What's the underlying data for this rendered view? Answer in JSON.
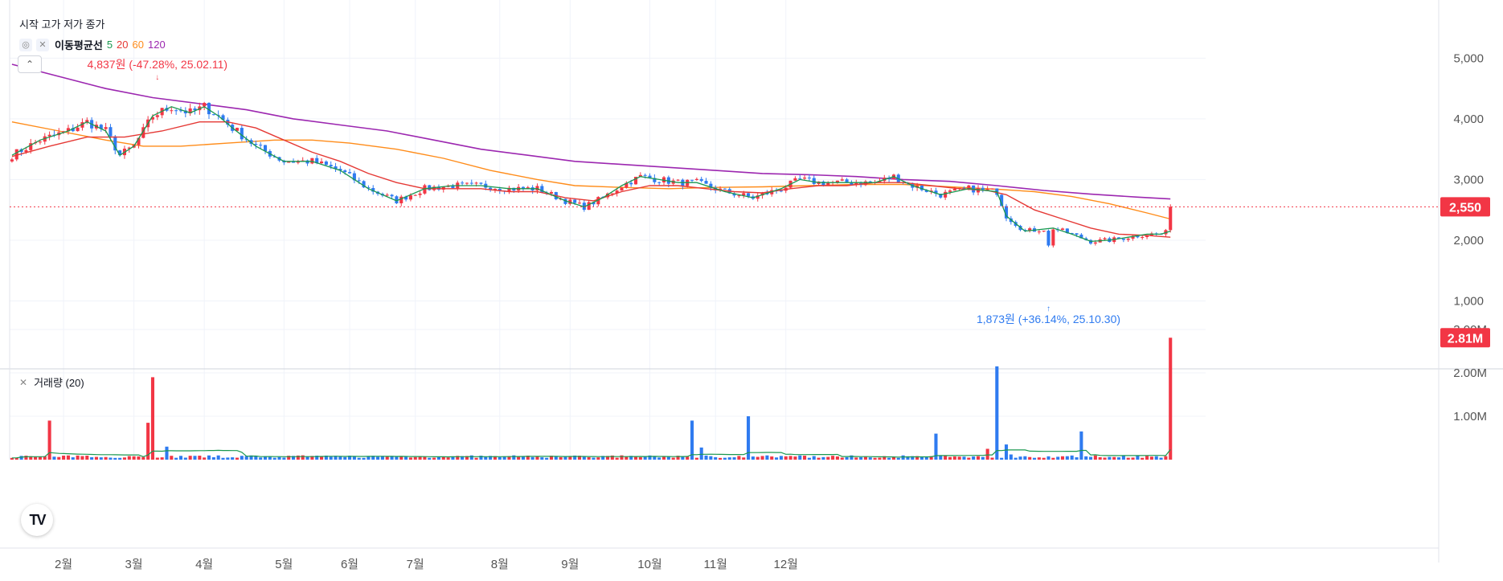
{
  "legend": {
    "ohlc_label": "시작 고가 저가 종가",
    "ma_title": "이동평균선",
    "ma_periods": [
      "5",
      "20",
      "60",
      "120"
    ],
    "collapse_icon": "chevron-up",
    "volume_title": "거래량 (20)"
  },
  "colors": {
    "up": "#f23645",
    "down": "#2f7bf0",
    "ma5": "#1a9850",
    "ma20": "#e53935",
    "ma60": "#ff8c1a",
    "ma120": "#9c27b0",
    "vol_ma": "#1a9850",
    "grid": "#f0f3fa"
  },
  "chart_data": {
    "type": "candlestick",
    "x_ticks": [
      "2월",
      "3월",
      "4월",
      "5월",
      "6월",
      "7월",
      "8월",
      "9월",
      "10월",
      "11월",
      "12월"
    ],
    "price_axis": {
      "ticks": [
        "1,000",
        "2,000",
        "3,000",
        "4,000",
        "5,000"
      ],
      "range": [
        900,
        5800
      ]
    },
    "volume_axis": {
      "ticks": [
        "1.00M",
        "2.00M",
        "3.00M"
      ],
      "range": [
        0,
        3000000
      ]
    },
    "current_price": "2,550",
    "current_price_value": 2550,
    "current_volume": "2.81M",
    "annotations": {
      "high": {
        "text": "4,837원 (-47.28%, 25.02.11)",
        "value": 4837,
        "date_index": 31
      },
      "low": {
        "text": "1,873원 (+36.14%, 25.10.30)",
        "value": 1873,
        "date_index": 221
      }
    },
    "ma_lines": {
      "ma5": [
        [
          0,
          3400
        ],
        [
          6,
          3650
        ],
        [
          12,
          3800
        ],
        [
          16,
          3950
        ],
        [
          20,
          3800
        ],
        [
          23,
          3400
        ],
        [
          26,
          3550
        ],
        [
          30,
          4050
        ],
        [
          34,
          4200
        ],
        [
          38,
          4100
        ],
        [
          41,
          4200
        ],
        [
          44,
          4050
        ],
        [
          47,
          3850
        ],
        [
          52,
          3550
        ],
        [
          58,
          3300
        ],
        [
          64,
          3300
        ],
        [
          70,
          3150
        ],
        [
          76,
          2850
        ],
        [
          82,
          2650
        ],
        [
          88,
          2850
        ],
        [
          94,
          2900
        ],
        [
          100,
          2900
        ],
        [
          106,
          2850
        ],
        [
          112,
          2850
        ],
        [
          118,
          2650
        ],
        [
          122,
          2550
        ],
        [
          126,
          2700
        ],
        [
          130,
          2900
        ],
        [
          134,
          3050
        ],
        [
          138,
          3000
        ],
        [
          142,
          2950
        ],
        [
          146,
          2950
        ],
        [
          152,
          2800
        ],
        [
          158,
          2700
        ],
        [
          164,
          2850
        ],
        [
          168,
          3000
        ],
        [
          172,
          2950
        ],
        [
          178,
          2950
        ],
        [
          184,
          2950
        ],
        [
          188,
          3050
        ],
        [
          192,
          2900
        ],
        [
          198,
          2750
        ],
        [
          204,
          2850
        ],
        [
          210,
          2800
        ],
        [
          212,
          2400
        ],
        [
          216,
          2150
        ],
        [
          222,
          2200
        ],
        [
          226,
          2100
        ],
        [
          230,
          1980
        ],
        [
          234,
          2000
        ],
        [
          238,
          2050
        ],
        [
          242,
          2100
        ],
        [
          245,
          2100
        ],
        [
          247,
          2150
        ]
      ],
      "ma20": [
        [
          0,
          3380
        ],
        [
          8,
          3550
        ],
        [
          16,
          3700
        ],
        [
          24,
          3700
        ],
        [
          32,
          3800
        ],
        [
          40,
          3950
        ],
        [
          46,
          3950
        ],
        [
          52,
          3850
        ],
        [
          58,
          3650
        ],
        [
          64,
          3450
        ],
        [
          70,
          3300
        ],
        [
          76,
          3100
        ],
        [
          82,
          2950
        ],
        [
          88,
          2850
        ],
        [
          94,
          2850
        ],
        [
          100,
          2850
        ],
        [
          106,
          2800
        ],
        [
          112,
          2800
        ],
        [
          118,
          2700
        ],
        [
          124,
          2650
        ],
        [
          130,
          2800
        ],
        [
          136,
          2900
        ],
        [
          142,
          2900
        ],
        [
          148,
          2850
        ],
        [
          154,
          2800
        ],
        [
          160,
          2780
        ],
        [
          166,
          2850
        ],
        [
          172,
          2900
        ],
        [
          178,
          2900
        ],
        [
          184,
          2950
        ],
        [
          190,
          2950
        ],
        [
          196,
          2900
        ],
        [
          202,
          2850
        ],
        [
          208,
          2820
        ],
        [
          212,
          2750
        ],
        [
          218,
          2500
        ],
        [
          224,
          2350
        ],
        [
          230,
          2200
        ],
        [
          236,
          2100
        ],
        [
          242,
          2080
        ],
        [
          247,
          2050
        ]
      ],
      "ma60": [
        [
          0,
          3950
        ],
        [
          10,
          3800
        ],
        [
          20,
          3650
        ],
        [
          28,
          3550
        ],
        [
          36,
          3550
        ],
        [
          46,
          3600
        ],
        [
          56,
          3650
        ],
        [
          64,
          3650
        ],
        [
          72,
          3600
        ],
        [
          82,
          3500
        ],
        [
          92,
          3350
        ],
        [
          102,
          3150
        ],
        [
          112,
          3000
        ],
        [
          120,
          2900
        ],
        [
          130,
          2870
        ],
        [
          140,
          2850
        ],
        [
          150,
          2870
        ],
        [
          160,
          2880
        ],
        [
          170,
          2900
        ],
        [
          180,
          2920
        ],
        [
          190,
          2920
        ],
        [
          200,
          2880
        ],
        [
          210,
          2840
        ],
        [
          218,
          2800
        ],
        [
          226,
          2720
        ],
        [
          234,
          2600
        ],
        [
          242,
          2450
        ],
        [
          247,
          2350
        ]
      ],
      "ma120": [
        [
          0,
          4900
        ],
        [
          10,
          4700
        ],
        [
          20,
          4500
        ],
        [
          30,
          4350
        ],
        [
          40,
          4250
        ],
        [
          50,
          4150
        ],
        [
          60,
          4000
        ],
        [
          70,
          3900
        ],
        [
          80,
          3800
        ],
        [
          90,
          3650
        ],
        [
          100,
          3500
        ],
        [
          110,
          3400
        ],
        [
          120,
          3300
        ],
        [
          130,
          3250
        ],
        [
          140,
          3200
        ],
        [
          150,
          3150
        ],
        [
          160,
          3100
        ],
        [
          170,
          3080
        ],
        [
          180,
          3050
        ],
        [
          190,
          3000
        ],
        [
          200,
          2970
        ],
        [
          210,
          2900
        ],
        [
          220,
          2820
        ],
        [
          230,
          2760
        ],
        [
          240,
          2710
        ],
        [
          247,
          2680
        ]
      ]
    }
  }
}
